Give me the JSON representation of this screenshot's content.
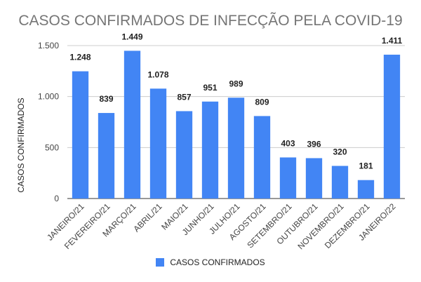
{
  "chart_data": {
    "type": "bar",
    "title": "CASOS CONFIRMADOS DE INFECÇÃO PELA COVID-19",
    "ylabel": "CASOS CONFIRMADOS",
    "xlabel": "",
    "categories": [
      "JANEIRO/21",
      "FEVEREIRO/21",
      "MARÇO/21",
      "ABRIL/21",
      "MAIO/21",
      "JUNHO/21",
      "JULHO/21",
      "AGOSTO/21",
      "SETEMBRO/21",
      "OUTUBRO/21",
      "NOVEMBRO/21",
      "DEZEMBRO/21",
      "JANEIRO/22"
    ],
    "series": [
      {
        "name": "CASOS CONFIRMADOS",
        "values": [
          1248,
          839,
          1449,
          1078,
          857,
          951,
          989,
          809,
          403,
          396,
          320,
          181,
          1411
        ],
        "data_labels": [
          "1.248",
          "839",
          "1.449",
          "1.078",
          "857",
          "951",
          "989",
          "809",
          "403",
          "396",
          "320",
          "181",
          "1.411"
        ],
        "color": "#4285f4"
      }
    ],
    "ylim": [
      0,
      1500
    ],
    "yticks": [
      0,
      500,
      1000,
      1500
    ],
    "ytick_labels": [
      "0",
      "500",
      "1.000",
      "1.500"
    ],
    "grid": true,
    "legend_position": "bottom"
  }
}
